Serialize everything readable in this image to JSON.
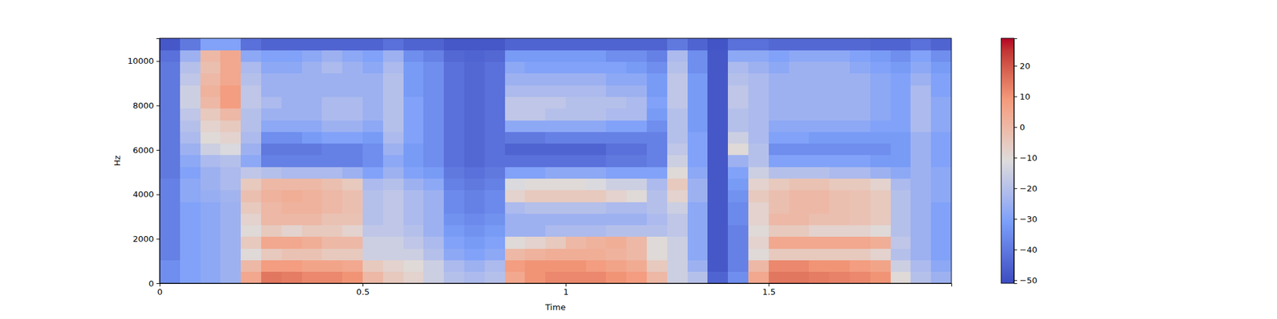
{
  "chart_data": {
    "type": "heatmap",
    "x_label": "Time",
    "y_label": "Hz",
    "xlim": [
      0,
      1.95
    ],
    "xticks": [
      0,
      0.5,
      1,
      1.5
    ],
    "ylim": [
      0,
      11025
    ],
    "yticks": [
      0,
      2000,
      4000,
      6000,
      8000,
      10000
    ],
    "x_bins": [
      0,
      0.05,
      0.1,
      0.15,
      0.2,
      0.25,
      0.3,
      0.35,
      0.4,
      0.45,
      0.5,
      0.55,
      0.6,
      0.65,
      0.7,
      0.75,
      0.8,
      0.85,
      0.9,
      0.95,
      1,
      1.05,
      1.1,
      1.15,
      1.2,
      1.25,
      1.3,
      1.35,
      1.4,
      1.45,
      1.5,
      1.55,
      1.6,
      1.65,
      1.7,
      1.75,
      1.8,
      1.85,
      1.9,
      1.95
    ],
    "y_bins": [
      0,
      525,
      1050,
      1575,
      2100,
      2625,
      3150,
      3675,
      4200,
      4725,
      5250,
      5775,
      6300,
      6825,
      7350,
      7875,
      8400,
      8925,
      9450,
      9975,
      10500,
      11025
    ],
    "cells": [
      [
        -35,
        -30,
        -28,
        -25,
        5,
        15,
        14,
        12,
        12,
        10,
        0,
        -5,
        -8,
        -15,
        -20,
        -22,
        -20,
        5,
        10,
        12,
        12,
        12,
        10,
        8,
        0,
        -15,
        -20,
        -45,
        -35,
        5,
        15,
        15,
        14,
        13,
        12,
        10,
        -10,
        -20,
        -25
      ],
      [
        -35,
        -30,
        -28,
        -25,
        0,
        8,
        8,
        6,
        6,
        5,
        -5,
        -8,
        -10,
        -15,
        -22,
        -25,
        -22,
        8,
        10,
        10,
        10,
        8,
        6,
        4,
        -5,
        -15,
        -25,
        -48,
        -38,
        0,
        12,
        12,
        10,
        10,
        8,
        6,
        -15,
        -22,
        -28
      ],
      [
        -38,
        -30,
        -28,
        -25,
        -10,
        -5,
        -3,
        -3,
        -5,
        -5,
        -15,
        -15,
        -15,
        -20,
        -28,
        -30,
        -28,
        0,
        2,
        3,
        3,
        3,
        2,
        0,
        -10,
        -15,
        -28,
        -48,
        -38,
        -10,
        -5,
        -5,
        -5,
        -5,
        -5,
        -8,
        -20,
        -25,
        -30
      ],
      [
        -38,
        -30,
        -28,
        -25,
        -5,
        5,
        5,
        3,
        0,
        0,
        -15,
        -15,
        -18,
        -22,
        -30,
        -32,
        -30,
        -10,
        -8,
        -5,
        0,
        2,
        3,
        0,
        -10,
        -15,
        -28,
        -48,
        -38,
        -8,
        5,
        5,
        5,
        5,
        5,
        3,
        -18,
        -25,
        -30
      ],
      [
        -38,
        -30,
        -28,
        -25,
        -10,
        -5,
        -8,
        -5,
        -5,
        -8,
        -18,
        -18,
        -20,
        -25,
        -32,
        -34,
        -32,
        -25,
        -25,
        -22,
        -22,
        -22,
        -20,
        -20,
        -20,
        -18,
        -28,
        -48,
        -38,
        -10,
        -5,
        -5,
        -8,
        -8,
        -8,
        -10,
        -20,
        -25,
        -30
      ],
      [
        -38,
        -30,
        -28,
        -25,
        -8,
        0,
        0,
        0,
        -3,
        -3,
        -20,
        -18,
        -22,
        -25,
        -34,
        -36,
        -34,
        -25,
        -25,
        -25,
        -25,
        -25,
        -25,
        -25,
        -22,
        -18,
        -28,
        -48,
        -36,
        -8,
        0,
        0,
        -2,
        -2,
        -3,
        -5,
        -20,
        -25,
        -30
      ],
      [
        -38,
        -30,
        -28,
        -25,
        -5,
        0,
        2,
        2,
        0,
        -2,
        -20,
        -18,
        -22,
        -25,
        -36,
        -38,
        -36,
        -22,
        -20,
        -20,
        -20,
        -20,
        -22,
        -22,
        -20,
        -15,
        -28,
        -48,
        -36,
        -8,
        -2,
        0,
        0,
        -2,
        -3,
        -5,
        -20,
        -25,
        -30
      ],
      [
        -38,
        -28,
        -26,
        -24,
        -2,
        2,
        3,
        2,
        0,
        -2,
        -20,
        -18,
        -22,
        -25,
        -36,
        -38,
        -36,
        -8,
        -5,
        -5,
        -5,
        -5,
        -8,
        -10,
        -20,
        -8,
        -25,
        -48,
        -34,
        -5,
        -2,
        0,
        0,
        -2,
        -3,
        -5,
        -20,
        -25,
        -28
      ],
      [
        -38,
        -28,
        -25,
        -22,
        -5,
        0,
        0,
        0,
        -2,
        -5,
        -22,
        -20,
        -25,
        -28,
        -38,
        -40,
        -38,
        -12,
        -10,
        -10,
        -10,
        -12,
        -15,
        -15,
        -22,
        -5,
        -25,
        -48,
        -32,
        -8,
        -5,
        -3,
        -3,
        -5,
        -5,
        -8,
        -22,
        -25,
        -28
      ],
      [
        -40,
        -30,
        -25,
        -22,
        -18,
        -20,
        -22,
        -22,
        -22,
        -25,
        -30,
        -25,
        -30,
        -32,
        -40,
        -42,
        -40,
        -30,
        -30,
        -28,
        -28,
        -28,
        -30,
        -30,
        -30,
        -10,
        -28,
        -48,
        -30,
        -15,
        -20,
        -20,
        -20,
        -22,
        -22,
        -25,
        -28,
        -25,
        -28
      ],
      [
        -40,
        -28,
        -22,
        -20,
        -28,
        -38,
        -38,
        -38,
        -38,
        -38,
        -35,
        -28,
        -32,
        -35,
        -42,
        -44,
        -42,
        -42,
        -42,
        -42,
        -42,
        -42,
        -40,
        -40,
        -38,
        -15,
        -30,
        -48,
        -25,
        -20,
        -30,
        -30,
        -30,
        -30,
        -30,
        -32,
        -32,
        -25,
        -30
      ],
      [
        -40,
        -25,
        -15,
        -12,
        -25,
        -40,
        -40,
        -40,
        -38,
        -38,
        -35,
        -25,
        -32,
        -35,
        -42,
        -44,
        -42,
        -45,
        -45,
        -45,
        -45,
        -45,
        -42,
        -42,
        -38,
        -18,
        -30,
        -48,
        -10,
        -20,
        -35,
        -35,
        -35,
        -35,
        -35,
        -35,
        -32,
        -25,
        -30
      ],
      [
        -40,
        -22,
        -10,
        -8,
        -22,
        -35,
        -35,
        -32,
        -30,
        -30,
        -32,
        -22,
        -30,
        -35,
        -42,
        -44,
        -42,
        -40,
        -40,
        -38,
        -38,
        -38,
        -38,
        -38,
        -38,
        -20,
        -30,
        -48,
        -15,
        -22,
        -30,
        -30,
        -32,
        -32,
        -32,
        -32,
        -32,
        -25,
        -30
      ],
      [
        -40,
        -20,
        -8,
        -5,
        -20,
        -28,
        -28,
        -28,
        -25,
        -25,
        -28,
        -20,
        -30,
        -35,
        -42,
        -44,
        -42,
        -28,
        -28,
        -28,
        -28,
        -28,
        -30,
        -30,
        -35,
        -20,
        -32,
        -48,
        -20,
        -22,
        -28,
        -28,
        -28,
        -28,
        -28,
        -30,
        -30,
        -22,
        -28
      ],
      [
        -40,
        -18,
        -5,
        0,
        -20,
        -25,
        -25,
        -25,
        -22,
        -22,
        -25,
        -20,
        -30,
        -35,
        -42,
        -44,
        -42,
        -18,
        -18,
        -20,
        -20,
        -20,
        -22,
        -22,
        -32,
        -20,
        -32,
        -48,
        -20,
        -22,
        -25,
        -25,
        -25,
        -25,
        -25,
        -28,
        -30,
        -22,
        -28
      ],
      [
        -40,
        -15,
        0,
        8,
        -18,
        -22,
        -25,
        -25,
        -22,
        -22,
        -25,
        -20,
        -30,
        -35,
        -42,
        -44,
        -42,
        -18,
        -18,
        -18,
        -20,
        -20,
        -20,
        -22,
        -30,
        -18,
        -32,
        -48,
        -18,
        -22,
        -25,
        -25,
        -25,
        -25,
        -25,
        -28,
        -30,
        -22,
        -28
      ],
      [
        -40,
        -15,
        2,
        8,
        -18,
        -25,
        -25,
        -25,
        -25,
        -25,
        -25,
        -20,
        -32,
        -35,
        -42,
        -44,
        -42,
        -22,
        -22,
        -22,
        -22,
        -22,
        -25,
        -25,
        -32,
        -18,
        -32,
        -48,
        -18,
        -22,
        -25,
        -25,
        -25,
        -25,
        -25,
        -28,
        -30,
        -22,
        -30
      ],
      [
        -40,
        -18,
        0,
        5,
        -20,
        -25,
        -25,
        -25,
        -25,
        -25,
        -25,
        -20,
        -32,
        -35,
        -42,
        -44,
        -42,
        -25,
        -25,
        -25,
        -25,
        -25,
        -28,
        -28,
        -32,
        -18,
        -32,
        -48,
        -20,
        -22,
        -25,
        -25,
        -25,
        -25,
        -25,
        -28,
        -30,
        -25,
        -30
      ],
      [
        -40,
        -20,
        -2,
        5,
        -22,
        -28,
        -28,
        -25,
        -22,
        -25,
        -28,
        -22,
        -32,
        -35,
        -42,
        -44,
        -42,
        -28,
        -30,
        -30,
        -30,
        -30,
        -30,
        -32,
        -35,
        -20,
        -35,
        -48,
        -22,
        -25,
        -28,
        -25,
        -25,
        -25,
        -28,
        -30,
        -32,
        -28,
        -32
      ],
      [
        -42,
        -25,
        0,
        5,
        -28,
        -30,
        -30,
        -28,
        -25,
        -28,
        -30,
        -25,
        -35,
        -38,
        -44,
        -45,
        -44,
        -32,
        -32,
        -32,
        -32,
        -32,
        -35,
        -35,
        -38,
        -22,
        -35,
        -48,
        -28,
        -28,
        -30,
        -28,
        -28,
        -28,
        -30,
        -32,
        -35,
        -30,
        -35
      ],
      [
        -48,
        -40,
        -30,
        -30,
        -42,
        -45,
        -45,
        -45,
        -45,
        -45,
        -45,
        -42,
        -45,
        -45,
        -48,
        -48,
        -48,
        -45,
        -45,
        -45,
        -45,
        -45,
        -45,
        -45,
        -45,
        -40,
        -45,
        -49,
        -42,
        -42,
        -44,
        -44,
        -44,
        -44,
        -44,
        -45,
        -45,
        -42,
        -45
      ]
    ],
    "color_range": [
      -51,
      29
    ],
    "colorbar_ticks": [
      {
        "value": -50,
        "label": "−50"
      },
      {
        "value": -40,
        "label": "−40"
      },
      {
        "value": -30,
        "label": "−30"
      },
      {
        "value": -20,
        "label": "−20"
      },
      {
        "value": -10,
        "label": "−10"
      },
      0,
      10,
      20
    ]
  }
}
